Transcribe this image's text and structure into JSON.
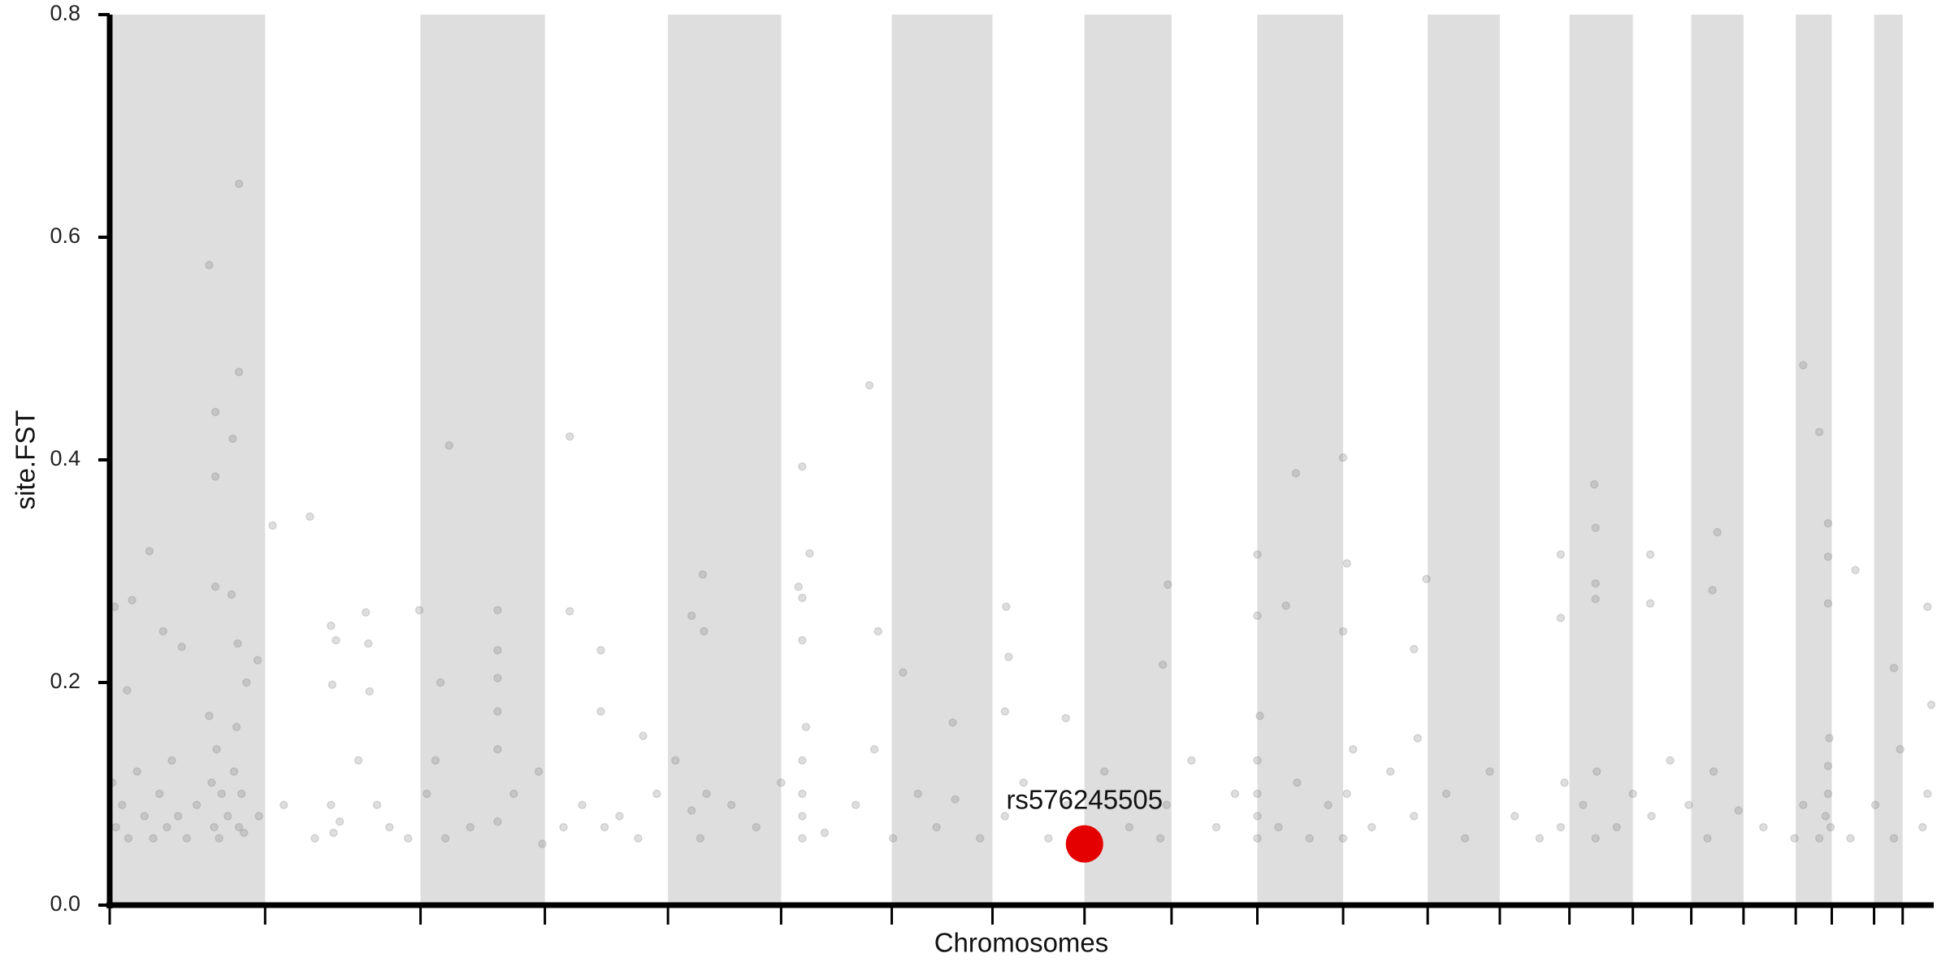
{
  "chart_data": {
    "type": "scatter",
    "xlabel": "Chromosomes",
    "ylabel": "site.FST",
    "xlim": [
      0,
      1467
    ],
    "xticks": [
      0,
      125,
      250,
      350,
      449,
      540,
      629,
      710,
      784,
      854,
      923,
      992,
      1060,
      1118,
      1174,
      1225,
      1272,
      1314,
      1356,
      1385,
      1419,
      1442
    ],
    "xtick_labels": false,
    "shade_alternate": true,
    "band_color": "#dedede",
    "ylim": [
      0,
      0.8
    ],
    "yticks": [
      {
        "value": 0,
        "label": "0.0"
      },
      0.2,
      0.4,
      0.6,
      0.8
    ],
    "grid": false,
    "color": "#7a7a7a",
    "opacity": 0.25,
    "x": [
      80,
      104,
      104,
      85,
      99,
      85,
      85,
      98,
      32,
      18,
      4,
      14,
      43,
      58,
      131,
      161,
      119,
      103,
      178,
      182,
      206,
      208,
      179,
      209,
      249,
      273,
      266,
      312,
      312,
      312,
      312,
      370,
      370,
      395,
      395,
      429,
      477,
      468,
      478,
      557,
      563,
      557,
      554,
      557,
      611,
      618,
      638,
      678,
      721,
      723,
      720,
      769,
      851,
      847,
      923,
      923,
      946,
      954,
      992,
      995,
      992,
      1059,
      1049,
      1167,
      1167,
      1194,
      1195,
      1195,
      1195,
      1239,
      1239,
      1293,
      1289,
      1362,
      1375,
      1382,
      1382,
      1382,
      1404,
      1462,
      1435,
      2,
      5,
      10,
      15,
      22,
      28,
      35,
      40,
      46,
      50,
      55,
      62,
      70,
      80,
      82,
      84,
      86,
      88,
      90,
      95,
      100,
      102,
      104,
      106,
      108,
      110,
      120,
      140,
      165,
      178,
      180,
      185,
      200,
      215,
      225,
      240,
      255,
      262,
      270,
      290,
      312,
      312,
      325,
      345,
      348,
      365,
      380,
      398,
      410,
      425,
      440,
      455,
      468,
      475,
      480,
      500,
      520,
      540,
      557,
      557,
      557,
      557,
      560,
      575,
      600,
      615,
      630,
      650,
      665,
      680,
      700,
      720,
      735,
      755,
      770,
      800,
      820,
      845,
      850,
      870,
      890,
      905,
      923,
      923,
      923,
      923,
      925,
      940,
      955,
      965,
      980,
      992,
      995,
      1000,
      1015,
      1030,
      1049,
      1052,
      1075,
      1090,
      1110,
      1130,
      1150,
      1167,
      1170,
      1185,
      1195,
      1196,
      1212,
      1225,
      1240,
      1255,
      1270,
      1285,
      1290,
      1310,
      1330,
      1355,
      1362,
      1375,
      1380,
      1382,
      1382,
      1383,
      1384,
      1400,
      1420,
      1435,
      1440,
      1458,
      1462,
      1465
    ],
    "values": [
      0.575,
      0.648,
      0.479,
      0.443,
      0.419,
      0.385,
      0.286,
      0.279,
      0.318,
      0.274,
      0.268,
      0.193,
      0.246,
      0.232,
      0.341,
      0.349,
      0.22,
      0.235,
      0.251,
      0.238,
      0.263,
      0.235,
      0.198,
      0.192,
      0.265,
      0.413,
      0.2,
      0.265,
      0.229,
      0.204,
      0.174,
      0.421,
      0.264,
      0.229,
      0.174,
      0.152,
      0.297,
      0.26,
      0.246,
      0.394,
      0.316,
      0.276,
      0.286,
      0.238,
      0.467,
      0.246,
      0.209,
      0.164,
      0.268,
      0.223,
      0.174,
      0.168,
      0.288,
      0.216,
      0.315,
      0.26,
      0.269,
      0.388,
      0.402,
      0.307,
      0.246,
      0.293,
      0.23,
      0.315,
      0.258,
      0.378,
      0.339,
      0.289,
      0.275,
      0.315,
      0.271,
      0.335,
      0.283,
      0.485,
      0.425,
      0.343,
      0.313,
      0.271,
      0.301,
      0.268,
      0.213,
      0.11,
      0.07,
      0.09,
      0.06,
      0.12,
      0.08,
      0.06,
      0.1,
      0.07,
      0.13,
      0.08,
      0.06,
      0.09,
      0.17,
      0.11,
      0.07,
      0.14,
      0.06,
      0.1,
      0.08,
      0.12,
      0.16,
      0.07,
      0.1,
      0.065,
      0.2,
      0.08,
      0.09,
      0.06,
      0.09,
      0.065,
      0.075,
      0.13,
      0.09,
      0.07,
      0.06,
      0.1,
      0.13,
      0.06,
      0.07,
      0.075,
      0.14,
      0.1,
      0.12,
      0.055,
      0.07,
      0.09,
      0.07,
      0.08,
      0.06,
      0.1,
      0.13,
      0.085,
      0.06,
      0.1,
      0.09,
      0.07,
      0.11,
      0.06,
      0.08,
      0.1,
      0.13,
      0.16,
      0.065,
      0.09,
      0.14,
      0.06,
      0.1,
      0.07,
      0.095,
      0.06,
      0.08,
      0.11,
      0.06,
      0.09,
      0.12,
      0.07,
      0.06,
      0.09,
      0.13,
      0.07,
      0.1,
      0.06,
      0.08,
      0.1,
      0.13,
      0.17,
      0.07,
      0.11,
      0.06,
      0.09,
      0.06,
      0.1,
      0.14,
      0.07,
      0.12,
      0.08,
      0.15,
      0.1,
      0.06,
      0.12,
      0.08,
      0.06,
      0.07,
      0.11,
      0.09,
      0.06,
      0.12,
      0.07,
      0.1,
      0.08,
      0.13,
      0.09,
      0.06,
      0.12,
      0.085,
      0.07,
      0.06,
      0.09,
      0.06,
      0.08,
      0.1,
      0.125,
      0.15,
      0.07,
      0.06,
      0.09,
      0.06,
      0.14,
      0.07,
      0.1,
      0.18
    ],
    "highlight": {
      "label": "rs576245505",
      "x": 784,
      "value": 0.055,
      "color": "#e50000"
    }
  }
}
